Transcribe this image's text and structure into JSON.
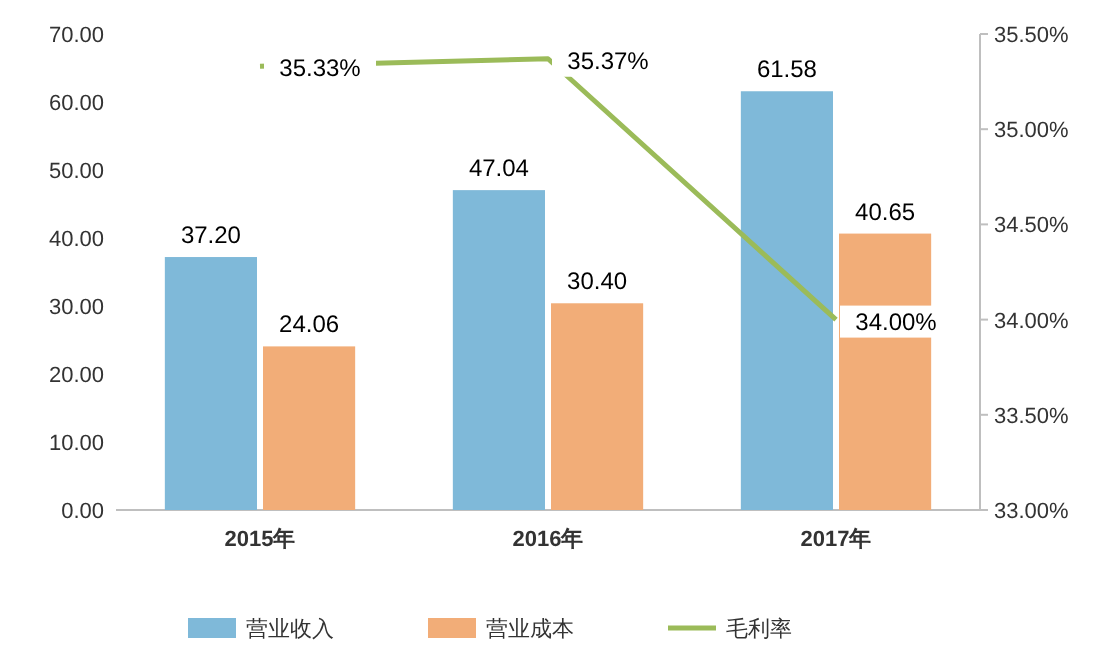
{
  "chart_data": {
    "type": "bar",
    "categories": [
      "2015年",
      "2016年",
      "2017年"
    ],
    "series": [
      {
        "name": "营业收入",
        "color": "#7fb9d9",
        "values": [
          37.2,
          47.04,
          61.58
        ],
        "value_labels": [
          "37.20",
          "47.04",
          "61.58"
        ]
      },
      {
        "name": "营业成本",
        "color": "#f2ad78",
        "values": [
          24.06,
          30.4,
          40.65
        ],
        "value_labels": [
          "24.06",
          "30.40",
          "40.65"
        ]
      },
      {
        "name": "毛利率",
        "type": "line",
        "axis": "y2",
        "color": "#9bbb59",
        "values": [
          35.33,
          35.37,
          34.0
        ],
        "value_labels": [
          "35.33%",
          "35.37%",
          "34.00%"
        ]
      }
    ],
    "ylim": [
      0,
      70
    ],
    "yticks": [
      {
        "value": 0,
        "label": "0.00"
      },
      {
        "value": 10,
        "label": "10.00"
      },
      {
        "value": 20,
        "label": "20.00"
      },
      {
        "value": 30,
        "label": "30.00"
      },
      {
        "value": 40,
        "label": "40.00"
      },
      {
        "value": 50,
        "label": "50.00"
      },
      {
        "value": 60,
        "label": "60.00"
      },
      {
        "value": 70,
        "label": "70.00"
      }
    ],
    "y2lim": [
      33,
      35.5
    ],
    "y2ticks": [
      {
        "value": 33,
        "label": "33.00%"
      },
      {
        "value": 33.5,
        "label": "33.50%"
      },
      {
        "value": 34,
        "label": "34.00%"
      },
      {
        "value": 34.5,
        "label": "34.50%"
      },
      {
        "value": 35,
        "label": "35.00%"
      },
      {
        "value": 35.5,
        "label": "35.50%"
      }
    ],
    "legend": "bottom",
    "grid": false
  }
}
